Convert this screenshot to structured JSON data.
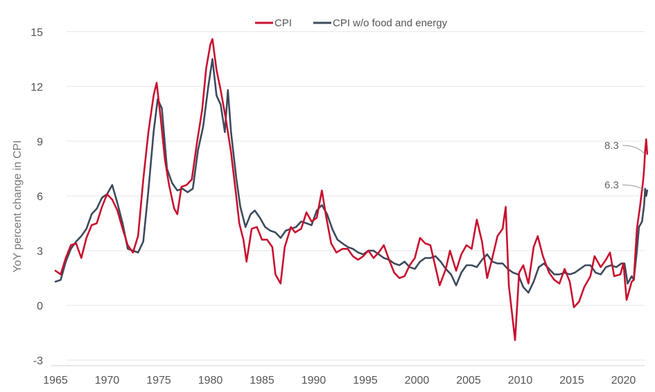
{
  "chart_data": {
    "type": "line",
    "title": "",
    "xlabel": "",
    "ylabel": "YoY percent change in CPI",
    "xlim": [
      1965,
      2022.3
    ],
    "ylim": [
      -3,
      16
    ],
    "y_ticks": [
      -3,
      0,
      3,
      6,
      9,
      12,
      15
    ],
    "x_ticks": [
      1965,
      1970,
      1975,
      1980,
      1985,
      1990,
      1995,
      2000,
      2005,
      2010,
      2015,
      2020
    ],
    "grid": "horizontal",
    "legend_placement": "top-center",
    "series": [
      {
        "name": "CPI",
        "color": "#c8102e",
        "points": [
          [
            1965.0,
            1.9
          ],
          [
            1965.5,
            1.7
          ],
          [
            1966.0,
            2.6
          ],
          [
            1966.5,
            3.3
          ],
          [
            1967.0,
            3.4
          ],
          [
            1967.5,
            2.6
          ],
          [
            1968.0,
            3.7
          ],
          [
            1968.5,
            4.4
          ],
          [
            1969.0,
            4.5
          ],
          [
            1969.5,
            5.4
          ],
          [
            1970.0,
            6.1
          ],
          [
            1970.5,
            5.8
          ],
          [
            1971.0,
            5.2
          ],
          [
            1971.5,
            4.2
          ],
          [
            1972.0,
            3.3
          ],
          [
            1972.5,
            2.9
          ],
          [
            1973.0,
            3.8
          ],
          [
            1973.5,
            6.9
          ],
          [
            1974.0,
            9.5
          ],
          [
            1974.5,
            11.5
          ],
          [
            1974.8,
            12.2
          ],
          [
            1975.2,
            10.2
          ],
          [
            1975.6,
            8.0
          ],
          [
            1976.0,
            6.6
          ],
          [
            1976.5,
            5.3
          ],
          [
            1976.8,
            5.0
          ],
          [
            1977.2,
            6.5
          ],
          [
            1977.7,
            6.6
          ],
          [
            1978.2,
            6.9
          ],
          [
            1978.7,
            8.9
          ],
          [
            1979.2,
            10.7
          ],
          [
            1979.6,
            13.0
          ],
          [
            1980.0,
            14.3
          ],
          [
            1980.2,
            14.6
          ],
          [
            1980.6,
            12.9
          ],
          [
            1981.0,
            11.8
          ],
          [
            1981.5,
            10.2
          ],
          [
            1982.0,
            8.4
          ],
          [
            1982.5,
            6.0
          ],
          [
            1982.8,
            4.5
          ],
          [
            1983.2,
            3.6
          ],
          [
            1983.5,
            2.4
          ],
          [
            1984.0,
            4.2
          ],
          [
            1984.5,
            4.3
          ],
          [
            1985.0,
            3.6
          ],
          [
            1985.5,
            3.6
          ],
          [
            1986.0,
            3.2
          ],
          [
            1986.3,
            1.7
          ],
          [
            1986.8,
            1.2
          ],
          [
            1987.2,
            3.2
          ],
          [
            1987.8,
            4.3
          ],
          [
            1988.2,
            4.0
          ],
          [
            1988.8,
            4.2
          ],
          [
            1989.3,
            5.1
          ],
          [
            1989.8,
            4.6
          ],
          [
            1990.3,
            4.8
          ],
          [
            1990.8,
            6.3
          ],
          [
            1991.2,
            4.9
          ],
          [
            1991.7,
            3.4
          ],
          [
            1992.2,
            2.9
          ],
          [
            1992.8,
            3.1
          ],
          [
            1993.3,
            3.1
          ],
          [
            1993.8,
            2.7
          ],
          [
            1994.3,
            2.5
          ],
          [
            1994.8,
            2.7
          ],
          [
            1995.3,
            3.0
          ],
          [
            1995.8,
            2.6
          ],
          [
            1996.3,
            2.9
          ],
          [
            1996.8,
            3.3
          ],
          [
            1997.3,
            2.5
          ],
          [
            1997.8,
            1.8
          ],
          [
            1998.3,
            1.5
          ],
          [
            1998.8,
            1.6
          ],
          [
            1999.3,
            2.2
          ],
          [
            1999.8,
            2.6
          ],
          [
            2000.3,
            3.7
          ],
          [
            2000.8,
            3.4
          ],
          [
            2001.3,
            3.3
          ],
          [
            2001.8,
            2.1
          ],
          [
            2002.2,
            1.1
          ],
          [
            2002.8,
            2.0
          ],
          [
            2003.2,
            3.0
          ],
          [
            2003.8,
            1.9
          ],
          [
            2004.3,
            2.8
          ],
          [
            2004.8,
            3.3
          ],
          [
            2005.3,
            3.1
          ],
          [
            2005.8,
            4.7
          ],
          [
            2006.3,
            3.5
          ],
          [
            2006.8,
            1.5
          ],
          [
            2007.3,
            2.6
          ],
          [
            2007.8,
            3.8
          ],
          [
            2008.3,
            4.2
          ],
          [
            2008.6,
            5.4
          ],
          [
            2008.9,
            1.1
          ],
          [
            2009.2,
            -0.4
          ],
          [
            2009.5,
            -1.9
          ],
          [
            2009.9,
            1.8
          ],
          [
            2010.3,
            2.2
          ],
          [
            2010.8,
            1.2
          ],
          [
            2011.3,
            3.2
          ],
          [
            2011.7,
            3.8
          ],
          [
            2012.2,
            2.7
          ],
          [
            2012.8,
            1.8
          ],
          [
            2013.3,
            1.4
          ],
          [
            2013.8,
            1.2
          ],
          [
            2014.3,
            2.0
          ],
          [
            2014.8,
            1.3
          ],
          [
            2015.2,
            -0.1
          ],
          [
            2015.7,
            0.2
          ],
          [
            2016.2,
            1.0
          ],
          [
            2016.8,
            1.6
          ],
          [
            2017.2,
            2.7
          ],
          [
            2017.8,
            2.1
          ],
          [
            2018.3,
            2.5
          ],
          [
            2018.7,
            2.9
          ],
          [
            2019.1,
            1.6
          ],
          [
            2019.7,
            1.7
          ],
          [
            2020.0,
            2.3
          ],
          [
            2020.3,
            0.3
          ],
          [
            2020.8,
            1.3
          ],
          [
            2021.0,
            1.4
          ],
          [
            2021.3,
            4.2
          ],
          [
            2021.6,
            5.4
          ],
          [
            2021.9,
            6.8
          ],
          [
            2022.0,
            7.5
          ],
          [
            2022.1,
            8.5
          ],
          [
            2022.2,
            9.1
          ],
          [
            2022.3,
            8.3
          ]
        ]
      },
      {
        "name": "CPI w/o food and energy",
        "color": "#3d4a5c",
        "points": [
          [
            1965.0,
            1.3
          ],
          [
            1965.5,
            1.4
          ],
          [
            1966.0,
            2.4
          ],
          [
            1966.5,
            3.1
          ],
          [
            1967.0,
            3.5
          ],
          [
            1967.5,
            3.8
          ],
          [
            1968.0,
            4.2
          ],
          [
            1968.5,
            5.0
          ],
          [
            1969.0,
            5.3
          ],
          [
            1969.5,
            5.9
          ],
          [
            1970.0,
            6.1
          ],
          [
            1970.5,
            6.6
          ],
          [
            1971.0,
            5.6
          ],
          [
            1971.5,
            4.5
          ],
          [
            1972.0,
            3.1
          ],
          [
            1972.5,
            3.0
          ],
          [
            1973.0,
            2.9
          ],
          [
            1973.5,
            3.5
          ],
          [
            1974.0,
            6.3
          ],
          [
            1974.5,
            9.5
          ],
          [
            1974.9,
            11.3
          ],
          [
            1975.3,
            10.8
          ],
          [
            1975.8,
            7.5
          ],
          [
            1976.3,
            6.7
          ],
          [
            1976.8,
            6.3
          ],
          [
            1977.3,
            6.4
          ],
          [
            1977.8,
            6.2
          ],
          [
            1978.3,
            6.4
          ],
          [
            1978.8,
            8.5
          ],
          [
            1979.3,
            9.8
          ],
          [
            1979.8,
            12.0
          ],
          [
            1980.2,
            13.5
          ],
          [
            1980.6,
            11.5
          ],
          [
            1981.0,
            11.0
          ],
          [
            1981.4,
            9.5
          ],
          [
            1981.7,
            11.8
          ],
          [
            1982.0,
            9.5
          ],
          [
            1982.5,
            7.0
          ],
          [
            1982.9,
            5.4
          ],
          [
            1983.4,
            4.3
          ],
          [
            1983.9,
            5.0
          ],
          [
            1984.3,
            5.2
          ],
          [
            1984.8,
            4.8
          ],
          [
            1985.3,
            4.3
          ],
          [
            1985.8,
            4.1
          ],
          [
            1986.3,
            4.0
          ],
          [
            1986.8,
            3.7
          ],
          [
            1987.3,
            4.1
          ],
          [
            1987.8,
            4.2
          ],
          [
            1988.3,
            4.3
          ],
          [
            1988.8,
            4.6
          ],
          [
            1989.3,
            4.5
          ],
          [
            1989.8,
            4.4
          ],
          [
            1990.3,
            5.2
          ],
          [
            1990.8,
            5.5
          ],
          [
            1991.3,
            5.0
          ],
          [
            1991.8,
            4.2
          ],
          [
            1992.3,
            3.6
          ],
          [
            1992.8,
            3.4
          ],
          [
            1993.3,
            3.2
          ],
          [
            1993.8,
            3.1
          ],
          [
            1994.3,
            2.9
          ],
          [
            1994.8,
            2.8
          ],
          [
            1995.3,
            3.0
          ],
          [
            1995.8,
            3.0
          ],
          [
            1996.3,
            2.8
          ],
          [
            1996.8,
            2.6
          ],
          [
            1997.3,
            2.5
          ],
          [
            1997.8,
            2.3
          ],
          [
            1998.3,
            2.2
          ],
          [
            1998.8,
            2.4
          ],
          [
            1999.3,
            2.1
          ],
          [
            1999.8,
            2.0
          ],
          [
            2000.3,
            2.4
          ],
          [
            2000.8,
            2.6
          ],
          [
            2001.3,
            2.6
          ],
          [
            2001.8,
            2.7
          ],
          [
            2002.3,
            2.4
          ],
          [
            2002.8,
            2.0
          ],
          [
            2003.3,
            1.7
          ],
          [
            2003.8,
            1.1
          ],
          [
            2004.3,
            1.8
          ],
          [
            2004.8,
            2.2
          ],
          [
            2005.3,
            2.2
          ],
          [
            2005.8,
            2.1
          ],
          [
            2006.3,
            2.5
          ],
          [
            2006.8,
            2.8
          ],
          [
            2007.3,
            2.4
          ],
          [
            2007.8,
            2.3
          ],
          [
            2008.3,
            2.3
          ],
          [
            2008.8,
            2.0
          ],
          [
            2009.3,
            1.8
          ],
          [
            2009.8,
            1.7
          ],
          [
            2010.3,
            1.0
          ],
          [
            2010.8,
            0.7
          ],
          [
            2011.3,
            1.3
          ],
          [
            2011.8,
            2.1
          ],
          [
            2012.3,
            2.3
          ],
          [
            2012.8,
            2.0
          ],
          [
            2013.3,
            1.7
          ],
          [
            2013.8,
            1.7
          ],
          [
            2014.3,
            1.8
          ],
          [
            2014.8,
            1.7
          ],
          [
            2015.3,
            1.8
          ],
          [
            2015.8,
            2.0
          ],
          [
            2016.3,
            2.2
          ],
          [
            2016.8,
            2.2
          ],
          [
            2017.3,
            1.8
          ],
          [
            2017.8,
            1.7
          ],
          [
            2018.3,
            2.1
          ],
          [
            2018.8,
            2.2
          ],
          [
            2019.3,
            2.1
          ],
          [
            2019.8,
            2.3
          ],
          [
            2020.1,
            2.3
          ],
          [
            2020.4,
            1.2
          ],
          [
            2020.8,
            1.6
          ],
          [
            2021.0,
            1.4
          ],
          [
            2021.3,
            3.0
          ],
          [
            2021.5,
            4.3
          ],
          [
            2021.8,
            4.6
          ],
          [
            2022.0,
            5.5
          ],
          [
            2022.1,
            6.4
          ],
          [
            2022.2,
            6.0
          ],
          [
            2022.3,
            6.3
          ]
        ]
      }
    ],
    "annotations": [
      {
        "text": "8.3",
        "series": "CPI",
        "x": 2022.3,
        "y": 8.3
      },
      {
        "text": "6.3",
        "series": "CPI w/o food and energy",
        "x": 2022.3,
        "y": 6.3
      }
    ]
  }
}
